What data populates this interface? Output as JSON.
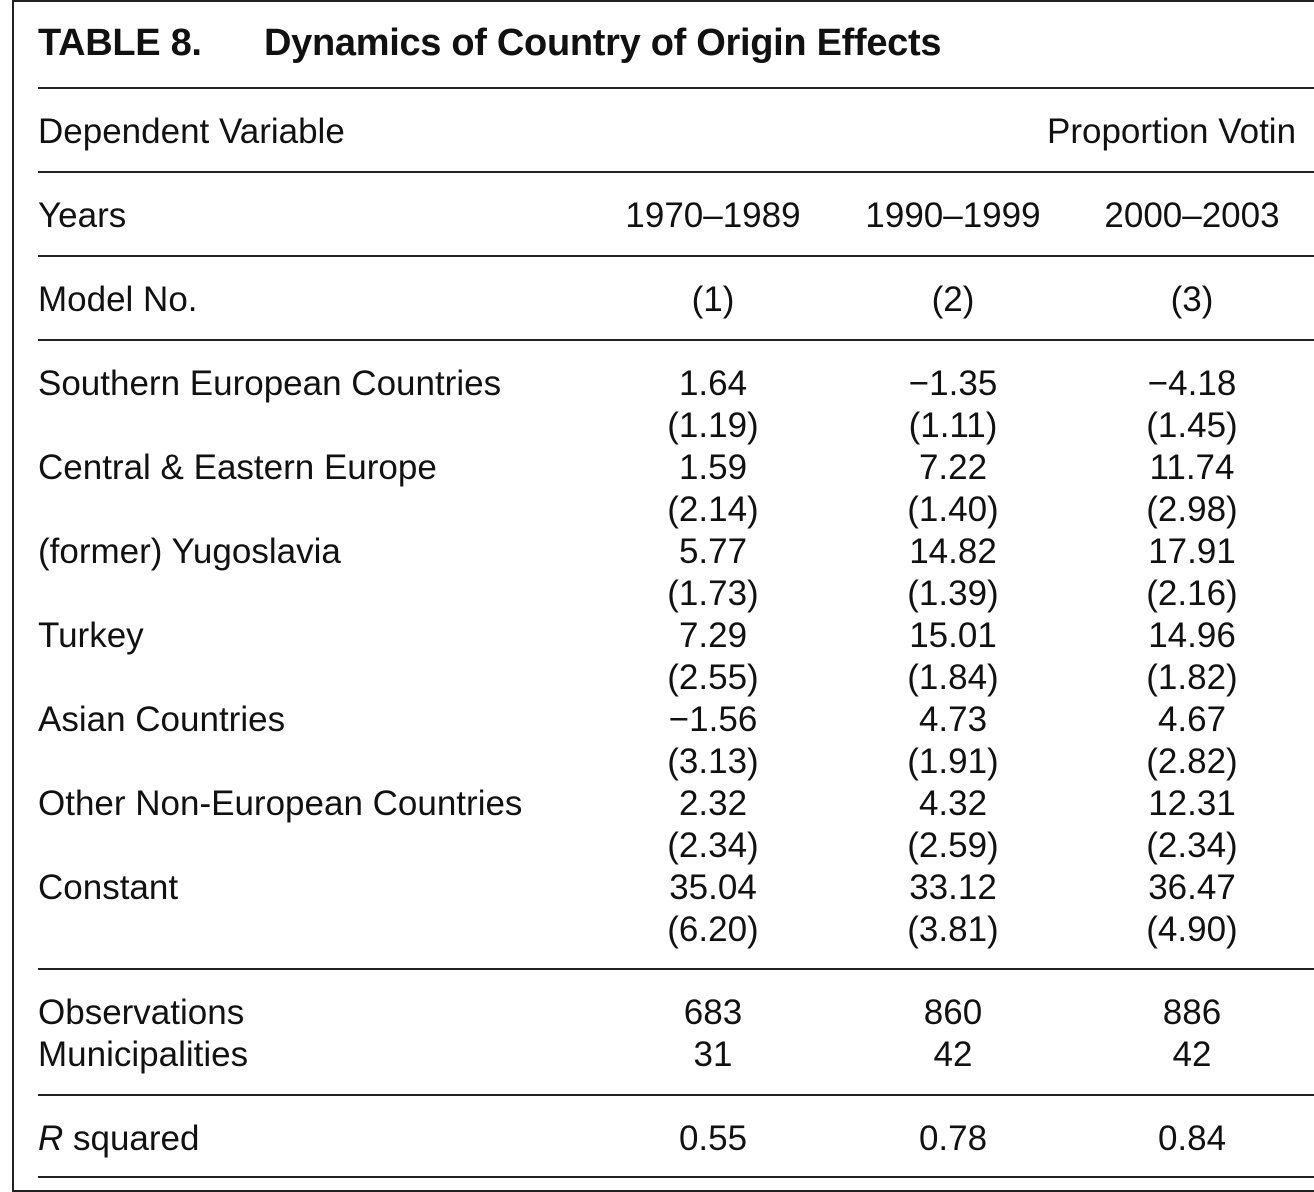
{
  "table": {
    "label": "TABLE 8.",
    "title": "Dynamics of Country of Origin Effects",
    "dependent_variable": {
      "label": "Dependent Variable",
      "value": "Proportion Votin"
    },
    "years": {
      "label": "Years",
      "values": [
        "1970–1989",
        "1990–1999",
        "2000–2003"
      ]
    },
    "model_no": {
      "label": "Model No.",
      "values": [
        "(1)",
        "(2)",
        "(3)"
      ]
    },
    "rows": [
      {
        "name": "Southern European Countries",
        "coef": [
          "1.64",
          "−1.35",
          "−4.18"
        ],
        "se": [
          "(1.19)",
          "(1.11)",
          "(1.45)"
        ]
      },
      {
        "name": "Central & Eastern Europe",
        "coef": [
          "1.59",
          "7.22",
          "11.74"
        ],
        "se": [
          "(2.14)",
          "(1.40)",
          "(2.98)"
        ]
      },
      {
        "name": "(former) Yugoslavia",
        "coef": [
          "5.77",
          "14.82",
          "17.91"
        ],
        "se": [
          "(1.73)",
          "(1.39)",
          "(2.16)"
        ]
      },
      {
        "name": "Turkey",
        "coef": [
          "7.29",
          "15.01",
          "14.96"
        ],
        "se": [
          "(2.55)",
          "(1.84)",
          "(1.82)"
        ]
      },
      {
        "name": "Asian Countries",
        "coef": [
          "−1.56",
          "4.73",
          "4.67"
        ],
        "se": [
          "(3.13)",
          "(1.91)",
          "(2.82)"
        ]
      },
      {
        "name": "Other Non-European Countries",
        "coef": [
          "2.32",
          "4.32",
          "12.31"
        ],
        "se": [
          "(2.34)",
          "(2.59)",
          "(2.34)"
        ]
      },
      {
        "name": "Constant",
        "coef": [
          "35.04",
          "33.12",
          "36.47"
        ],
        "se": [
          "(6.20)",
          "(3.81)",
          "(4.90)"
        ]
      }
    ],
    "observations": {
      "label": "Observations",
      "values": [
        "683",
        "860",
        "886"
      ]
    },
    "municipalities": {
      "label": "Municipalities",
      "values": [
        "31",
        "42",
        "42"
      ]
    },
    "r_squared": {
      "label_italic": "R",
      "label_rest": " squared",
      "values": [
        "0.55",
        "0.78",
        "0.84"
      ]
    }
  }
}
